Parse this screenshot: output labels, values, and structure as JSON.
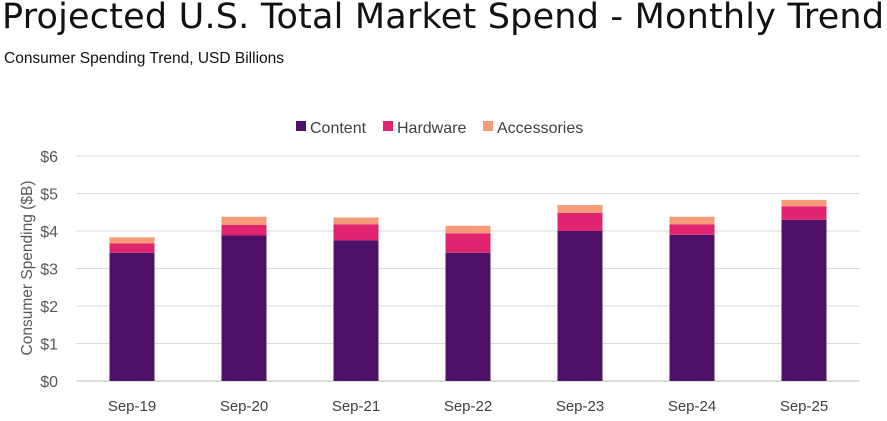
{
  "title": "Projected U.S. Total Market Spend - Monthly Trend",
  "subtitle": "Consumer Spending Trend, USD Billions",
  "colors": {
    "content": "#4e1168",
    "hardware": "#e0246f",
    "accessories": "#f59a78",
    "grid": "#d9d9d9"
  },
  "chart_data": {
    "type": "bar",
    "stacked": true,
    "categories": [
      "Sep-19",
      "Sep-20",
      "Sep-21",
      "Sep-22",
      "Sep-23",
      "Sep-24",
      "Sep-25"
    ],
    "series": [
      {
        "name": "Content",
        "color": "#4e1168",
        "values": [
          3.42,
          3.88,
          3.75,
          3.42,
          4.0,
          3.9,
          4.3
        ]
      },
      {
        "name": "Hardware",
        "color": "#e0246f",
        "values": [
          0.25,
          0.28,
          0.43,
          0.52,
          0.48,
          0.28,
          0.36
        ]
      },
      {
        "name": "Accessories",
        "color": "#f59a78",
        "values": [
          0.16,
          0.22,
          0.18,
          0.2,
          0.21,
          0.2,
          0.17
        ]
      }
    ],
    "ylabel": "Consumer Spending ($B)",
    "xlabel": "",
    "ylim": [
      0,
      6
    ],
    "yticks": [
      "$0",
      "$1",
      "$2",
      "$3",
      "$4",
      "$5",
      "$6"
    ],
    "grid": true,
    "legend_position": "top"
  }
}
